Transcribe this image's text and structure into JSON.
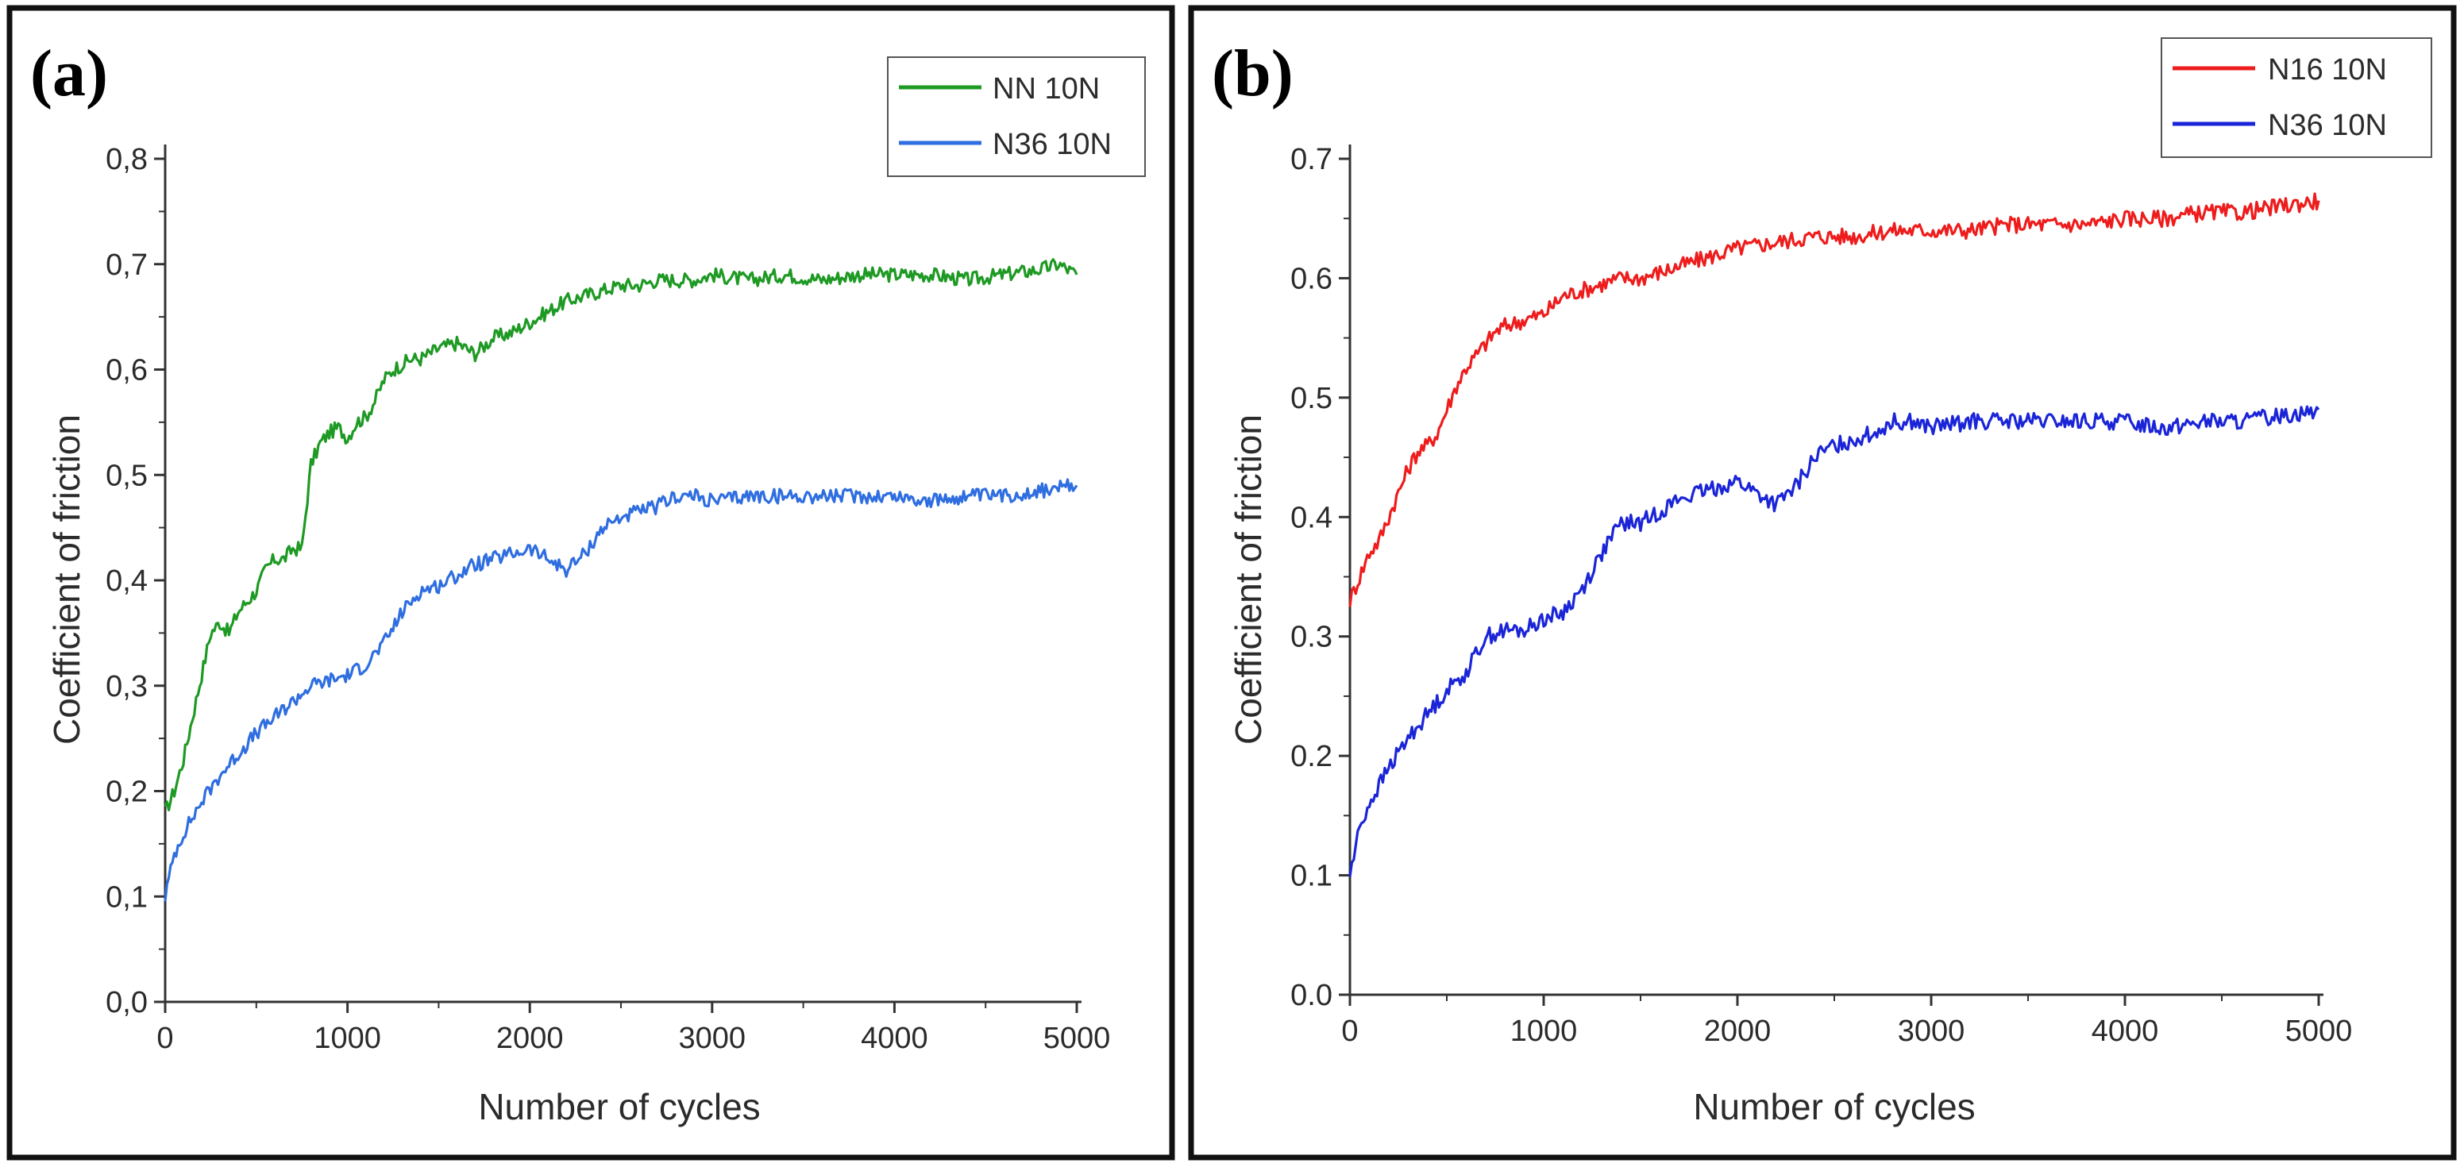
{
  "chart_data": [
    {
      "type": "line",
      "panel_label": "(a)",
      "xlabel": "Number of cycles",
      "ylabel": "Coefficient of friction",
      "xlim": [
        0,
        5000
      ],
      "ylim": [
        0,
        0.8
      ],
      "x_ticks": [
        0,
        1000,
        2000,
        3000,
        4000,
        5000
      ],
      "x_tick_labels": [
        "0",
        "1000",
        "2000",
        "3000",
        "4000",
        "5000"
      ],
      "y_ticks": [
        0,
        0.1,
        0.2,
        0.3,
        0.4,
        0.5,
        0.6,
        0.7,
        0.8
      ],
      "y_tick_labels": [
        "0,0",
        "0,1",
        "0,2",
        "0,3",
        "0,4",
        "0,5",
        "0,6",
        "0,7",
        "0,8"
      ],
      "grid": false,
      "legend_position": "top-right",
      "series": [
        {
          "name": "NN 10N",
          "color": "#1e9a24",
          "x": [
            0,
            50,
            100,
            150,
            200,
            250,
            300,
            350,
            400,
            450,
            500,
            550,
            600,
            650,
            700,
            750,
            800,
            850,
            900,
            950,
            1000,
            1050,
            1100,
            1150,
            1200,
            1250,
            1300,
            1350,
            1400,
            1450,
            1500,
            1600,
            1700,
            1800,
            1900,
            2000,
            2100,
            2200,
            2300,
            2400,
            2500,
            2600,
            2700,
            2800,
            2900,
            3000,
            3200,
            3400,
            3600,
            3800,
            4000,
            4200,
            4400,
            4600,
            4800,
            4900,
            5000
          ],
          "y": [
            0.18,
            0.2,
            0.23,
            0.27,
            0.31,
            0.35,
            0.36,
            0.35,
            0.37,
            0.38,
            0.39,
            0.41,
            0.42,
            0.42,
            0.43,
            0.43,
            0.51,
            0.53,
            0.54,
            0.545,
            0.535,
            0.55,
            0.555,
            0.57,
            0.59,
            0.6,
            0.605,
            0.61,
            0.61,
            0.615,
            0.62,
            0.625,
            0.615,
            0.63,
            0.635,
            0.645,
            0.655,
            0.665,
            0.67,
            0.675,
            0.68,
            0.68,
            0.685,
            0.685,
            0.685,
            0.69,
            0.685,
            0.69,
            0.685,
            0.69,
            0.69,
            0.69,
            0.685,
            0.69,
            0.695,
            0.7,
            0.69
          ]
        },
        {
          "name": "N36 10N",
          "color": "#2f6ee0",
          "x": [
            0,
            50,
            100,
            200,
            300,
            400,
            500,
            600,
            700,
            800,
            900,
            1000,
            1100,
            1200,
            1300,
            1400,
            1500,
            1600,
            1700,
            1800,
            1900,
            2000,
            2100,
            2200,
            2300,
            2400,
            2500,
            2600,
            2700,
            2800,
            2900,
            3000,
            3200,
            3400,
            3600,
            3800,
            4000,
            4200,
            4400,
            4600,
            4800,
            5000
          ],
          "y": [
            0.1,
            0.14,
            0.16,
            0.19,
            0.215,
            0.235,
            0.255,
            0.27,
            0.285,
            0.3,
            0.305,
            0.31,
            0.32,
            0.34,
            0.37,
            0.39,
            0.395,
            0.405,
            0.415,
            0.42,
            0.425,
            0.43,
            0.42,
            0.41,
            0.425,
            0.45,
            0.46,
            0.465,
            0.47,
            0.48,
            0.48,
            0.475,
            0.48,
            0.48,
            0.48,
            0.48,
            0.48,
            0.475,
            0.48,
            0.48,
            0.485,
            0.49
          ]
        }
      ]
    },
    {
      "type": "line",
      "panel_label": "(b)",
      "xlabel": "Number of cycles",
      "ylabel": "Coefficient of friction",
      "xlim": [
        0,
        5000
      ],
      "ylim": [
        0,
        0.7
      ],
      "x_ticks": [
        0,
        1000,
        2000,
        3000,
        4000,
        5000
      ],
      "x_tick_labels": [
        "0",
        "1000",
        "2000",
        "3000",
        "4000",
        "5000"
      ],
      "y_ticks": [
        0,
        0.1,
        0.2,
        0.3,
        0.4,
        0.5,
        0.6,
        0.7
      ],
      "y_tick_labels": [
        "0.0",
        "0.1",
        "0.2",
        "0.3",
        "0.4",
        "0.5",
        "0.6",
        "0.7"
      ],
      "grid": false,
      "legend_position": "top-right",
      "series": [
        {
          "name": "N16 10N",
          "color": "#ee1c1c",
          "x": [
            0,
            50,
            100,
            150,
            200,
            250,
            300,
            350,
            400,
            450,
            500,
            550,
            600,
            650,
            700,
            750,
            800,
            900,
            1000,
            1100,
            1200,
            1300,
            1400,
            1500,
            1600,
            1700,
            1800,
            1900,
            2000,
            2200,
            2400,
            2600,
            2800,
            3000,
            3200,
            3400,
            3600,
            3800,
            4000,
            4200,
            4400,
            4600,
            4800,
            5000
          ],
          "y": [
            0.33,
            0.35,
            0.37,
            0.38,
            0.4,
            0.42,
            0.44,
            0.455,
            0.46,
            0.47,
            0.49,
            0.51,
            0.525,
            0.535,
            0.545,
            0.555,
            0.56,
            0.565,
            0.57,
            0.585,
            0.59,
            0.595,
            0.6,
            0.6,
            0.605,
            0.61,
            0.615,
            0.62,
            0.625,
            0.63,
            0.635,
            0.635,
            0.64,
            0.64,
            0.64,
            0.645,
            0.645,
            0.645,
            0.65,
            0.65,
            0.655,
            0.655,
            0.66,
            0.665
          ]
        },
        {
          "name": "N36 10N",
          "color": "#1b25d8",
          "x": [
            0,
            50,
            100,
            200,
            300,
            400,
            500,
            600,
            700,
            800,
            900,
            1000,
            1100,
            1200,
            1300,
            1400,
            1500,
            1600,
            1700,
            1800,
            1900,
            2000,
            2100,
            2200,
            2300,
            2400,
            2500,
            2600,
            2700,
            2800,
            2900,
            3000,
            3200,
            3400,
            3600,
            3800,
            4000,
            4200,
            4400,
            4600,
            4800,
            5000
          ],
          "y": [
            0.1,
            0.14,
            0.16,
            0.19,
            0.215,
            0.235,
            0.255,
            0.27,
            0.3,
            0.305,
            0.305,
            0.315,
            0.32,
            0.34,
            0.37,
            0.395,
            0.395,
            0.405,
            0.415,
            0.42,
            0.425,
            0.43,
            0.42,
            0.41,
            0.425,
            0.45,
            0.46,
            0.465,
            0.47,
            0.48,
            0.48,
            0.475,
            0.48,
            0.48,
            0.48,
            0.48,
            0.48,
            0.475,
            0.48,
            0.48,
            0.485,
            0.49
          ]
        }
      ]
    }
  ]
}
